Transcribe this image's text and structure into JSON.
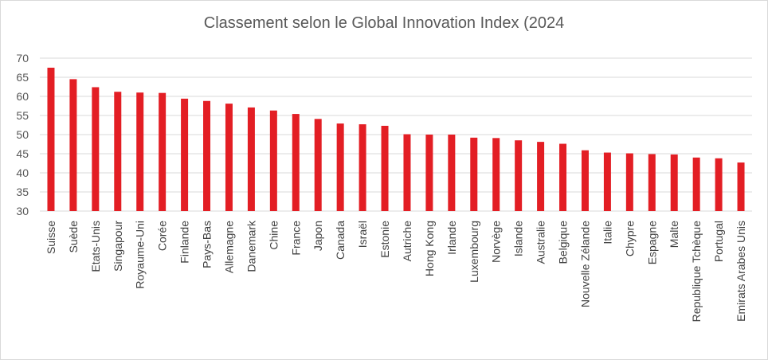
{
  "chart_data": {
    "type": "bar",
    "title": "Classement selon le Global Innovation Index (2024",
    "xlabel": "",
    "ylabel": "",
    "ylim": [
      30,
      70
    ],
    "yticks": [
      30,
      35,
      40,
      45,
      50,
      55,
      60,
      65,
      70
    ],
    "grid": true,
    "legend": "none",
    "bar_color": "#e31e24",
    "categories": [
      "Suisse",
      "Suède",
      "Etats-Unis",
      "Singapour",
      "Royaume-Uni",
      "Corée",
      "Finlande",
      "Pays-Bas",
      "Allemagne",
      "Danemark",
      "Chine",
      "France",
      "Japon",
      "Canada",
      "Israël",
      "Estonie",
      "Autriche",
      "Hong Kong",
      "Irlande",
      "Luxembourg",
      "Norvège",
      "Islande",
      "Australie",
      "Belgique",
      "Nouvelle Zélande",
      "Italie",
      "Chypre",
      "Espagne",
      "Malte",
      "Republique Tchèque",
      "Portugal",
      "Emirats Arabes Unis"
    ],
    "values": [
      67.5,
      64.5,
      62.4,
      61.2,
      61.0,
      60.9,
      59.4,
      58.8,
      58.1,
      57.1,
      56.3,
      55.4,
      54.1,
      52.9,
      52.7,
      52.3,
      50.1,
      50.0,
      50.0,
      49.2,
      49.1,
      48.5,
      48.1,
      47.6,
      45.9,
      45.3,
      45.1,
      44.9,
      44.8,
      44.0,
      43.8,
      42.7
    ]
  }
}
